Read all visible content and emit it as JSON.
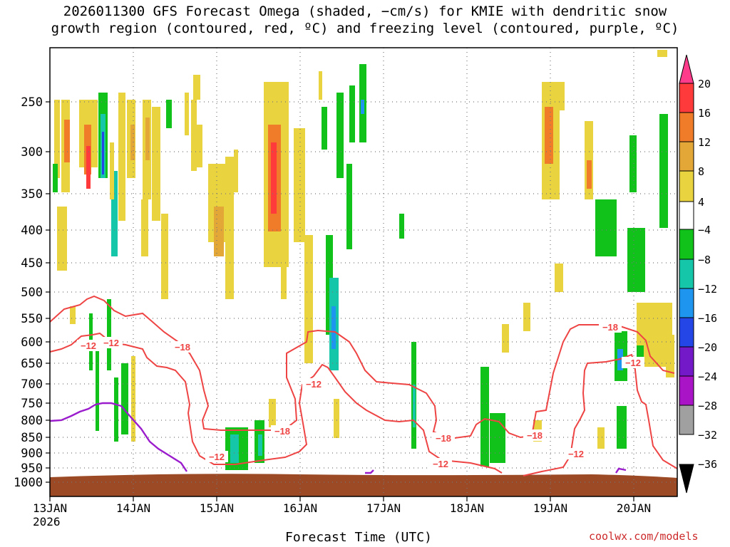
{
  "header": {
    "title_line1": "2026011300 GFS Forecast Omega (shaded, −cm/s) for KMIE with dendritic snow",
    "title_line2": "growth region (contoured, red, ºC) and freezing level (contoured, purple, ºC)"
  },
  "footer": {
    "xlabel": "Forecast Time (UTC)",
    "credit": "coolwx.com/models"
  },
  "chart_data": {
    "type": "heatmap",
    "title": "2026011300 GFS Forecast Omega (shaded, −cm/s) for KMIE with dendritic snow growth region (contoured, red, ºC) and freezing level (contoured, purple, ºC)",
    "xlabel": "Forecast Time (UTC)",
    "ylabel": "",
    "x_ticks": [
      "13JAN",
      "14JAN",
      "15JAN",
      "16JAN",
      "17JAN",
      "18JAN",
      "19JAN",
      "20JAN"
    ],
    "x_tick_sublabel": "2026",
    "y_ticks": [
      250,
      300,
      350,
      400,
      450,
      500,
      550,
      600,
      650,
      700,
      750,
      800,
      850,
      900,
      950,
      1000
    ],
    "y_range": [
      1000,
      200
    ],
    "grid": true,
    "colorbar": {
      "labels": [
        "20",
        "16",
        "12",
        "8",
        "4",
        "−4",
        "−8",
        "−12",
        "−16",
        "−20",
        "−24",
        "−28",
        "−32",
        "−36"
      ],
      "colors": [
        "#ff3c8c",
        "#ff3a3a",
        "#f07b28",
        "#e3a738",
        "#e9d440",
        "#ffffff",
        "#11c21a",
        "#16c6a8",
        "#1e96f0",
        "#2546e6",
        "#7419c8",
        "#a914c6",
        "#a0a0a0",
        "#000000"
      ]
    },
    "contours": [
      {
        "name": "dendritic snow growth region",
        "color": "#ee4444",
        "levels": [
          -12,
          -18
        ]
      },
      {
        "name": "freezing level",
        "color": "#9a1ccc",
        "levels": [
          0
        ]
      }
    ],
    "contour_labels": [
      "−12",
      "−18",
      "−12",
      "−18",
      "−12",
      "−12",
      "−18",
      "−12",
      "−18",
      "−12",
      "−18",
      "−12"
    ],
    "terrain": {
      "color": "#9b4a25"
    }
  }
}
